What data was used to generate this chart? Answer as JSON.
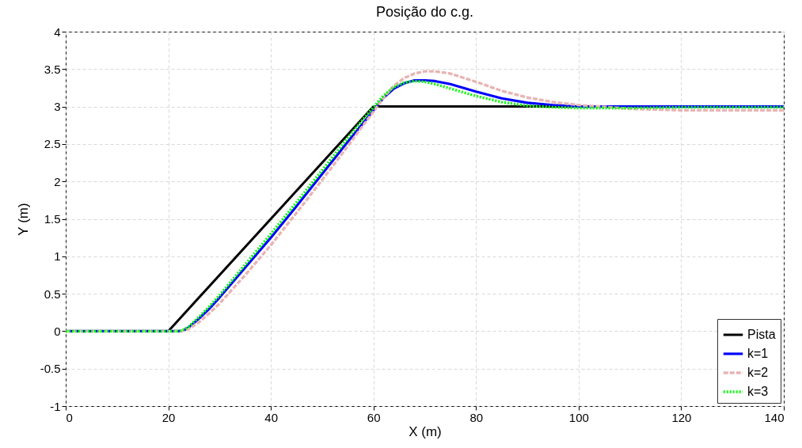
{
  "chart_data": {
    "type": "line",
    "title": "Posição do c.g.",
    "xlabel": "X (m)",
    "ylabel": "Y (m)",
    "xlim": [
      0,
      140
    ],
    "xticks": [
      0,
      20,
      40,
      60,
      80,
      100,
      120,
      140
    ],
    "ylim": [
      -1,
      4
    ],
    "yticks": [
      -1,
      -0.5,
      0,
      0.5,
      1,
      1.5,
      2,
      2.5,
      3,
      3.5,
      4
    ],
    "grid": true,
    "legend": "bottom right",
    "series": [
      {
        "name": "Pista",
        "color": "#000000",
        "line_style": "solid",
        "x": [
          0,
          20,
          60,
          140
        ],
        "values": [
          0,
          0,
          3,
          3
        ]
      },
      {
        "name": "k=1",
        "color": "#0000ff",
        "line_style": "solid",
        "x": [
          0,
          22,
          23,
          24,
          26,
          28,
          30,
          35,
          40,
          45,
          50,
          55,
          58,
          60,
          62,
          64,
          66,
          68,
          70,
          72,
          75,
          80,
          85,
          90,
          95,
          100,
          110,
          120,
          140
        ],
        "values": [
          0,
          0,
          0.01,
          0.05,
          0.17,
          0.3,
          0.45,
          0.85,
          1.25,
          1.67,
          2.1,
          2.53,
          2.78,
          2.95,
          3.12,
          3.24,
          3.31,
          3.35,
          3.35,
          3.34,
          3.3,
          3.2,
          3.11,
          3.05,
          3.02,
          3.0,
          3.0,
          3.0,
          3.0
        ]
      },
      {
        "name": "k=2",
        "color": "#e8b4b4",
        "line_style": "dashed",
        "x": [
          0,
          22,
          23,
          24,
          26,
          28,
          30,
          35,
          40,
          45,
          50,
          55,
          58,
          60,
          62,
          64,
          66,
          68,
          70,
          72,
          75,
          80,
          85,
          90,
          95,
          100,
          110,
          120,
          140
        ],
        "values": [
          0,
          0,
          0.01,
          0.03,
          0.12,
          0.24,
          0.37,
          0.75,
          1.15,
          1.58,
          2.02,
          2.47,
          2.75,
          2.93,
          3.12,
          3.28,
          3.38,
          3.44,
          3.47,
          3.47,
          3.44,
          3.33,
          3.21,
          3.12,
          3.06,
          3.02,
          2.97,
          2.95,
          2.95
        ]
      },
      {
        "name": "k=3",
        "color": "#00ff00",
        "line_style": "dotted",
        "x": [
          0,
          22,
          23,
          24,
          26,
          28,
          30,
          35,
          40,
          45,
          50,
          55,
          58,
          60,
          62,
          64,
          66,
          68,
          70,
          72,
          75,
          80,
          85,
          90,
          95,
          100,
          110,
          120,
          140
        ],
        "values": [
          0,
          0,
          0.02,
          0.06,
          0.19,
          0.33,
          0.48,
          0.89,
          1.3,
          1.72,
          2.15,
          2.58,
          2.83,
          2.99,
          3.15,
          3.26,
          3.32,
          3.34,
          3.33,
          3.3,
          3.24,
          3.14,
          3.06,
          3.01,
          2.99,
          2.98,
          2.98,
          2.99,
          2.99
        ]
      }
    ]
  }
}
